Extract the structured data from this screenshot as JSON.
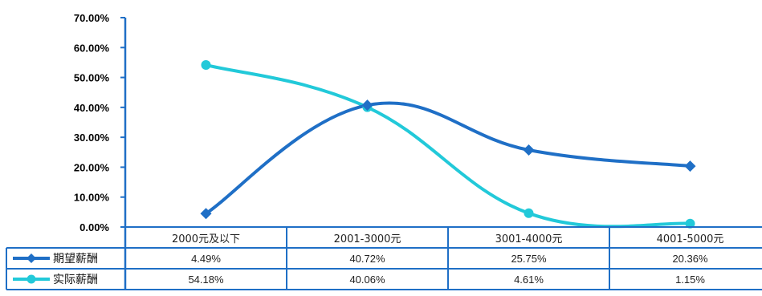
{
  "chart_data": {
    "type": "line",
    "title": "",
    "xlabel": "",
    "ylabel": "",
    "ylim": [
      0,
      70
    ],
    "ytick_step": 10,
    "ytick_labels": [
      "0.00%",
      "10.00%",
      "20.00%",
      "30.00%",
      "40.00%",
      "50.00%",
      "60.00%",
      "70.00%"
    ],
    "categories": [
      "2000元及以下",
      "2001-3000元",
      "3001-4000元",
      "4001-5000元"
    ],
    "series": [
      {
        "name": "期望薪酬",
        "values": [
          4.49,
          40.72,
          25.75,
          20.36
        ],
        "labels": [
          "4.49%",
          "40.72%",
          "25.75%",
          "20.36%"
        ],
        "color": "#1F6FC6",
        "marker": "diamond"
      },
      {
        "name": "实际薪酬",
        "values": [
          54.18,
          40.06,
          4.61,
          1.15
        ],
        "labels": [
          "54.18%",
          "40.06%",
          "4.61%",
          "1.15%"
        ],
        "color": "#22C9D9",
        "marker": "circle"
      }
    ],
    "smooth": true,
    "grid": false,
    "legend": "data-table"
  },
  "colors": {
    "axis": "#1F6FC6",
    "table_border": "#1F6FC6"
  }
}
